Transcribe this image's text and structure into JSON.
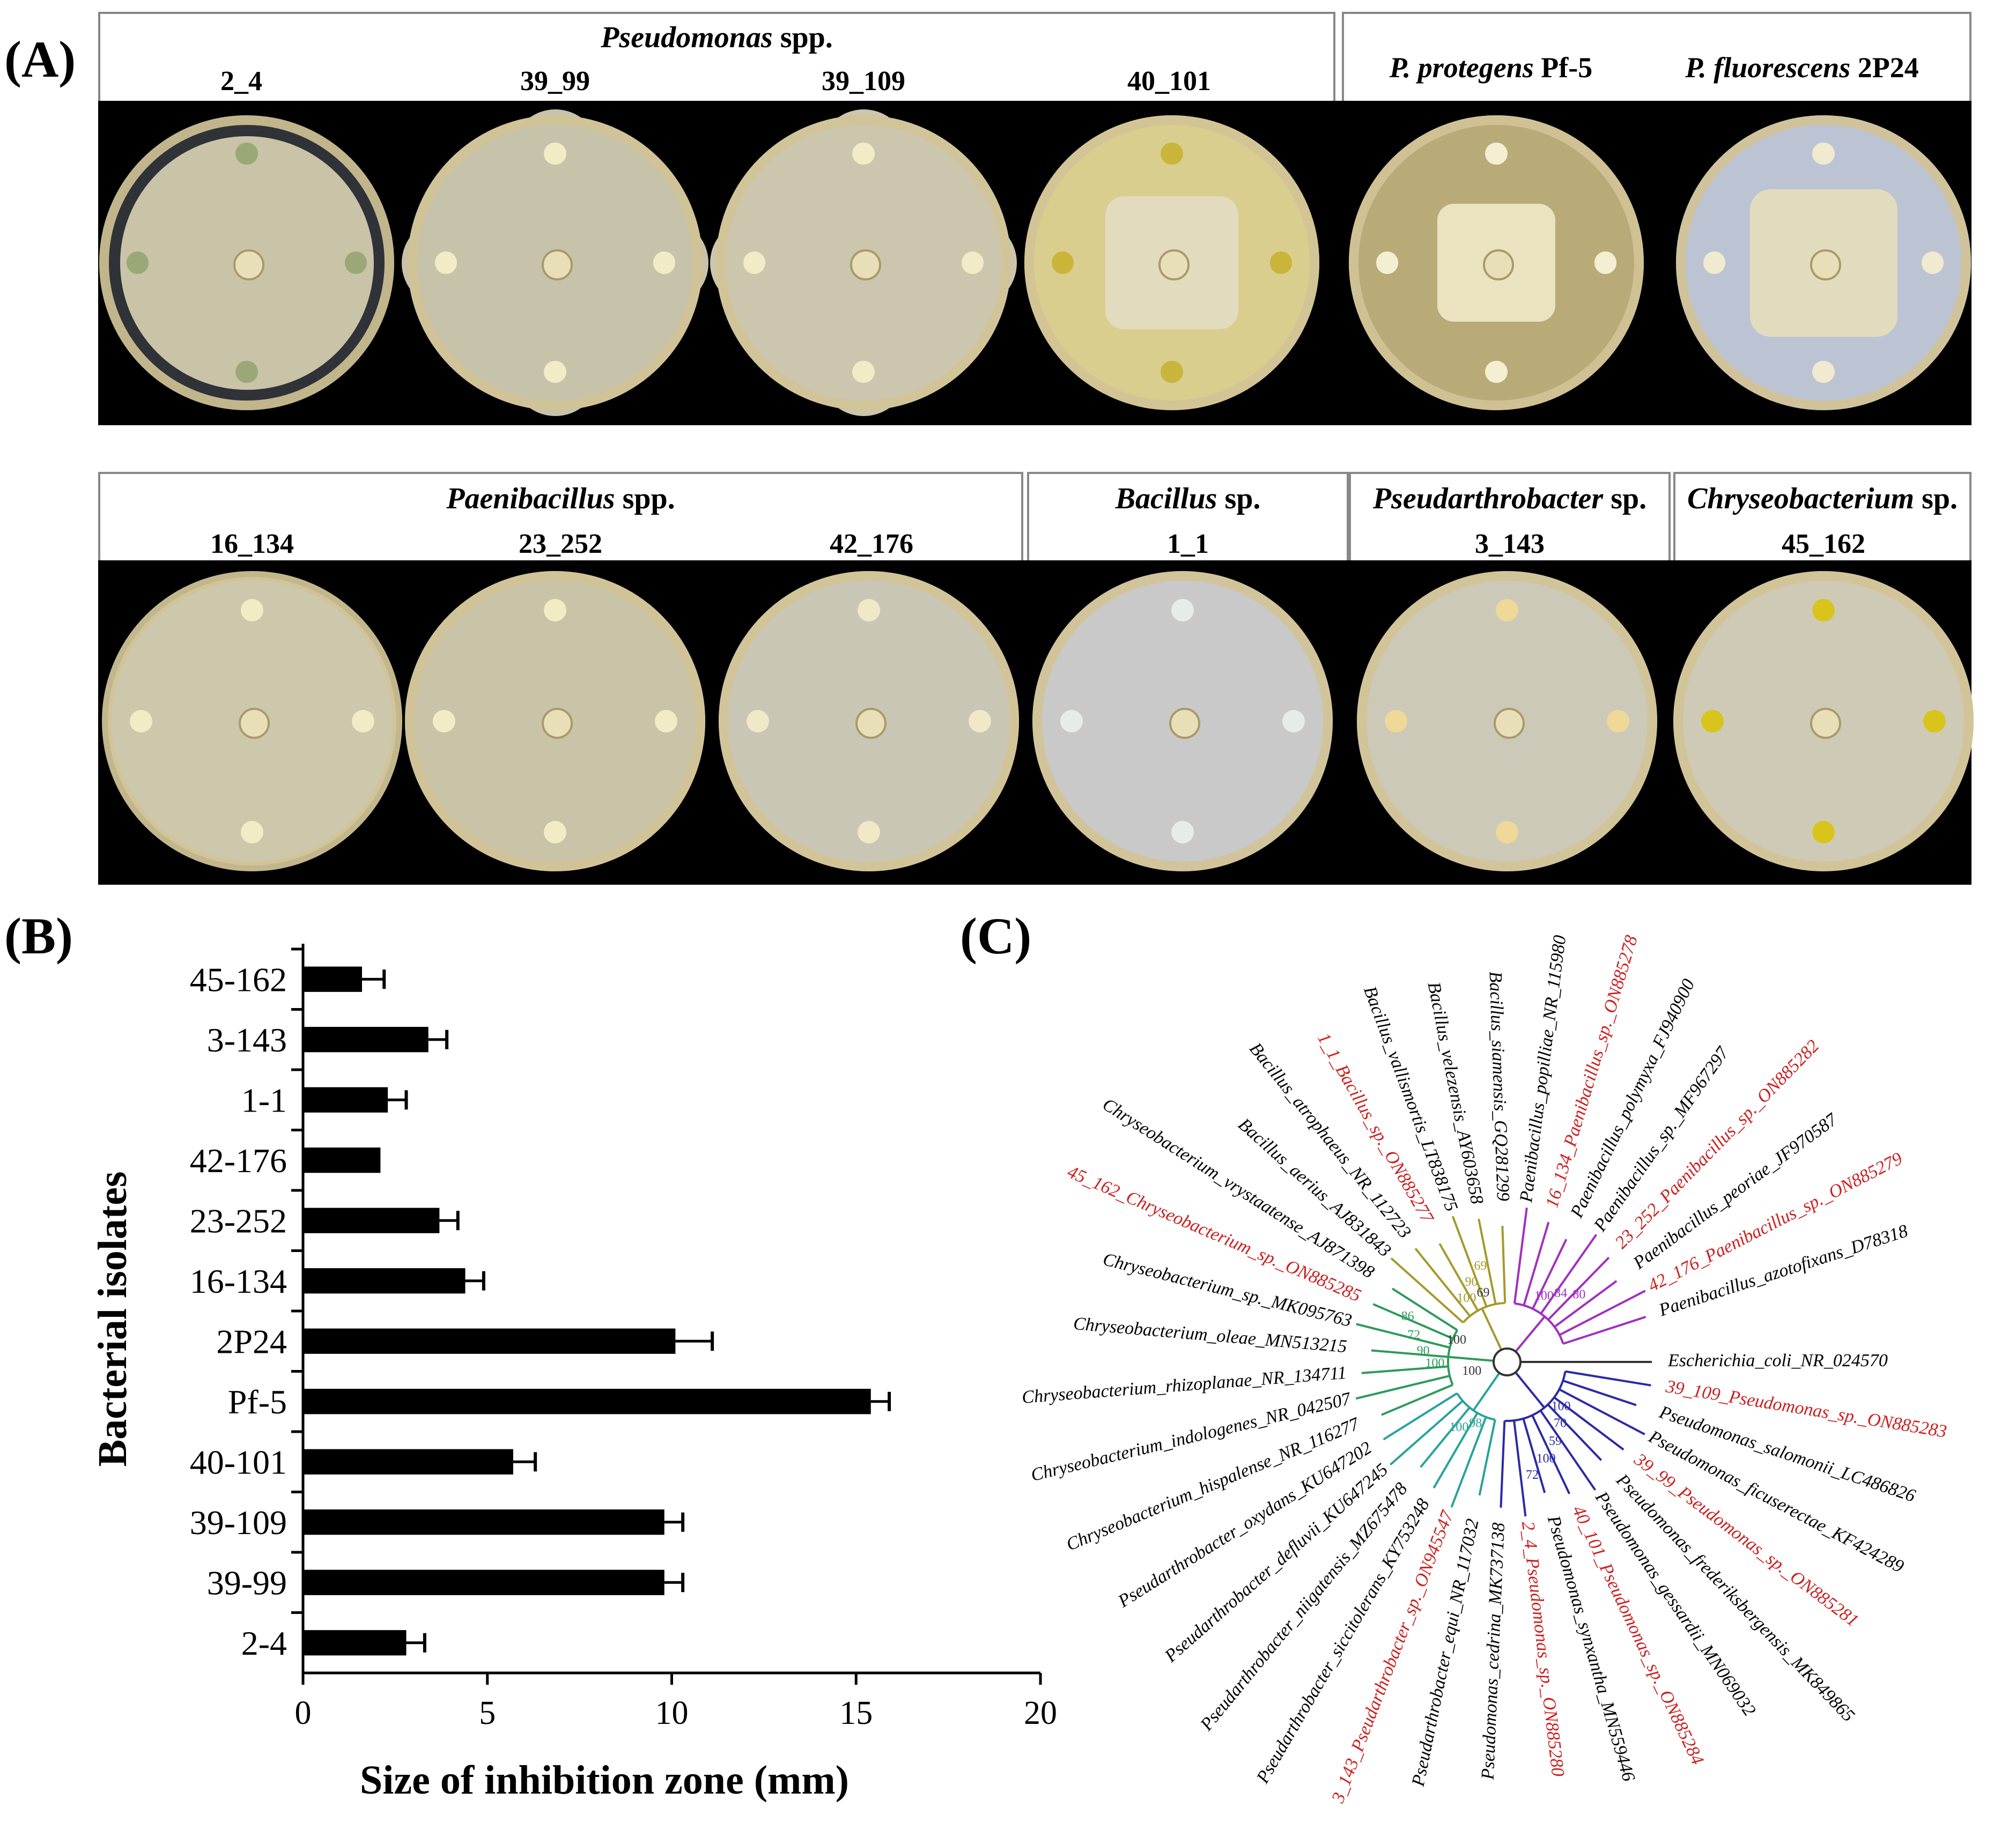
{
  "panels": {
    "a": "(A)",
    "b": "(B)",
    "c": "(C)"
  },
  "panel_a": {
    "row1": {
      "group1": {
        "title": "Pseudomonas",
        "suffix": " spp.",
        "isolates": [
          "2_4",
          "39_99",
          "39_109",
          "40_101"
        ]
      },
      "group2": {
        "strain1_italic": "P. protegens",
        "strain1_id": " Pf-5",
        "strain2_italic": "P. fluorescens",
        "strain2_id": " 2P24"
      }
    },
    "row2": {
      "group1": {
        "title": "Paenibacillus",
        "suffix": " spp.",
        "isolates": [
          "16_134",
          "23_252",
          "42_176"
        ]
      },
      "group2": {
        "title": "Bacillus",
        "suffix": " sp.",
        "isolate": "1_1"
      },
      "group3": {
        "title": "Pseudarthrobacter",
        "suffix": " sp.",
        "isolate": "3_143"
      },
      "group4": {
        "title": "Chryseobacterium",
        "suffix": " sp.",
        "isolate": "45_162"
      }
    }
  },
  "colors": {
    "bar": "#000000",
    "highlight": "#cc1f1f",
    "bacillus": "#a59a2a",
    "paenibacillus": "#a030c0",
    "chryseo": "#2e9a5a",
    "pseudarthro": "#27a39a",
    "pseudomonas": "#2a2aa8",
    "outgroup": "#333333"
  },
  "chart_data": {
    "type": "bar",
    "orientation": "horizontal",
    "categories": [
      "45-162",
      "3-143",
      "1-1",
      "42-176",
      "23-252",
      "16-134",
      "2P24",
      "Pf-5",
      "40-101",
      "39-109",
      "39-99",
      "2-4"
    ],
    "values": [
      1.6,
      3.4,
      2.3,
      2.1,
      3.7,
      4.4,
      10.1,
      15.4,
      5.7,
      9.8,
      9.8,
      2.8
    ],
    "errors": [
      0.6,
      0.5,
      0.5,
      0,
      0.5,
      0.5,
      1.0,
      0.5,
      0.6,
      0.5,
      0.5,
      0.5
    ],
    "xlabel": "Size of inhibition zone (mm)",
    "ylabel": "Bacterial isolates",
    "xlim": [
      0,
      20
    ],
    "xticks": [
      0,
      5,
      10,
      15,
      20
    ]
  },
  "tree": {
    "leaves": [
      {
        "label": "Escherichia_coli_NR_024570",
        "clade": "outgroup",
        "red": false
      },
      {
        "label": "39_109_Pseudomonas_sp._ON885283",
        "clade": "pseudomonas",
        "red": true
      },
      {
        "label": "Pseudomonas_salomonii_LC486826",
        "clade": "pseudomonas",
        "red": false
      },
      {
        "label": "Pseudomonas_ficuserectae_KF424289",
        "clade": "pseudomonas",
        "red": false
      },
      {
        "label": "39_99_Pseudomonas_sp._ON885281",
        "clade": "pseudomonas",
        "red": true
      },
      {
        "label": "Pseudomonas_frederiksbergensis_MK849865",
        "clade": "pseudomonas",
        "red": false
      },
      {
        "label": "Pseudomonas_gessardii_MN069032",
        "clade": "pseudomonas",
        "red": false
      },
      {
        "label": "40_101_Pseudomonas_sp._ON885284",
        "clade": "pseudomonas",
        "red": true
      },
      {
        "label": "Pseudomonas_synxantha_MN559446",
        "clade": "pseudomonas",
        "red": false
      },
      {
        "label": "2_4_Pseudomonas_sp._ON885280",
        "clade": "pseudomonas",
        "red": true
      },
      {
        "label": "Pseudomonas_cedrina_MK737138",
        "clade": "pseudomonas",
        "red": false
      },
      {
        "label": "Pseudarthrobacter_equi_NR_117032",
        "clade": "pseudarthro",
        "red": false
      },
      {
        "label": "3_143_Pseudarthrobacter_sp._ON945547",
        "clade": "pseudarthro",
        "red": true
      },
      {
        "label": "Pseudarthrobacter_siccitolerans_KY753248",
        "clade": "pseudarthro",
        "red": false
      },
      {
        "label": "Pseudarthrobacter_niigatensis_MZ675478",
        "clade": "pseudarthro",
        "red": false
      },
      {
        "label": "Pseudarthrobacter_defluvii_KU647245",
        "clade": "pseudarthro",
        "red": false
      },
      {
        "label": "Pseudarthrobacter_oxydans_KU647202",
        "clade": "pseudarthro",
        "red": false
      },
      {
        "label": "Chryseobacterium_hispalense_NR_116277",
        "clade": "chryseo",
        "red": false
      },
      {
        "label": "Chryseobacterium_indologenes_NR_042507",
        "clade": "chryseo",
        "red": false
      },
      {
        "label": "Chryseobacterium_rhizoplanae_NR_134711",
        "clade": "chryseo",
        "red": false
      },
      {
        "label": "Chryseobacterium_oleae_MN513215",
        "clade": "chryseo",
        "red": false
      },
      {
        "label": "Chryseobacterium_sp._MK095763",
        "clade": "chryseo",
        "red": false
      },
      {
        "label": "45_162_Chryseobacterium_sp._ON885285",
        "clade": "chryseo",
        "red": true
      },
      {
        "label": "Chryseobacterium_vrystaatense_AJ871398",
        "clade": "chryseo",
        "red": false
      },
      {
        "label": "Bacillus_aerius_AJ831843",
        "clade": "bacillus",
        "red": false
      },
      {
        "label": "Bacillus_atrophaeus_NR_112723",
        "clade": "bacillus",
        "red": false
      },
      {
        "label": "1_1_Bacillus_sp._ON885277",
        "clade": "bacillus",
        "red": true
      },
      {
        "label": "Bacillus_vallismortis_LT838175",
        "clade": "bacillus",
        "red": false
      },
      {
        "label": "Bacillus_velezensis_AY603658",
        "clade": "bacillus",
        "red": false
      },
      {
        "label": "Bacillus_siamensis_GQ281299",
        "clade": "bacillus",
        "red": false
      },
      {
        "label": "Paenibacillus_popilliae_NR_115980",
        "clade": "paenibacillus",
        "red": false
      },
      {
        "label": "16_134_Paenibacillus_sp._ON885278",
        "clade": "paenibacillus",
        "red": true
      },
      {
        "label": "Paenibacillus_polymyxa_FJ940900",
        "clade": "paenibacillus",
        "red": false
      },
      {
        "label": "Paenibacillus_sp._MF967297",
        "clade": "paenibacillus",
        "red": false
      },
      {
        "label": "23_252_Paenibacillus_sp._ON885282",
        "clade": "paenibacillus",
        "red": true
      },
      {
        "label": "Paenibacillus_peoriae_JF970587",
        "clade": "paenibacillus",
        "red": false
      },
      {
        "label": "42_176_Paenibacillus_sp._ON885279",
        "clade": "paenibacillus",
        "red": true
      },
      {
        "label": "Paenibacillus_azotofixans_D78318",
        "clade": "paenibacillus",
        "red": false
      }
    ],
    "bootstrap": [
      {
        "label": "100",
        "clade": "outgroup"
      },
      {
        "label": "100",
        "clade": "outgroup"
      },
      {
        "label": "69",
        "clade": "outgroup"
      },
      {
        "label": "100",
        "clade": "pseudomonas"
      },
      {
        "label": "70",
        "clade": "pseudomonas"
      },
      {
        "label": "59",
        "clade": "pseudomonas"
      },
      {
        "label": "100",
        "clade": "pseudomonas"
      },
      {
        "label": "72",
        "clade": "pseudomonas"
      },
      {
        "label": "100",
        "clade": "chryseo"
      },
      {
        "label": "90",
        "clade": "chryseo"
      },
      {
        "label": "72",
        "clade": "chryseo"
      },
      {
        "label": "86",
        "clade": "chryseo"
      },
      {
        "label": "98",
        "clade": "pseudarthro"
      },
      {
        "label": "100",
        "clade": "pseudarthro"
      },
      {
        "label": "100",
        "clade": "bacillus"
      },
      {
        "label": "90",
        "clade": "bacillus"
      },
      {
        "label": "69",
        "clade": "bacillus"
      },
      {
        "label": "100",
        "clade": "paenibacillus"
      },
      {
        "label": "84",
        "clade": "paenibacillus"
      },
      {
        "label": "80",
        "clade": "paenibacillus"
      }
    ]
  }
}
